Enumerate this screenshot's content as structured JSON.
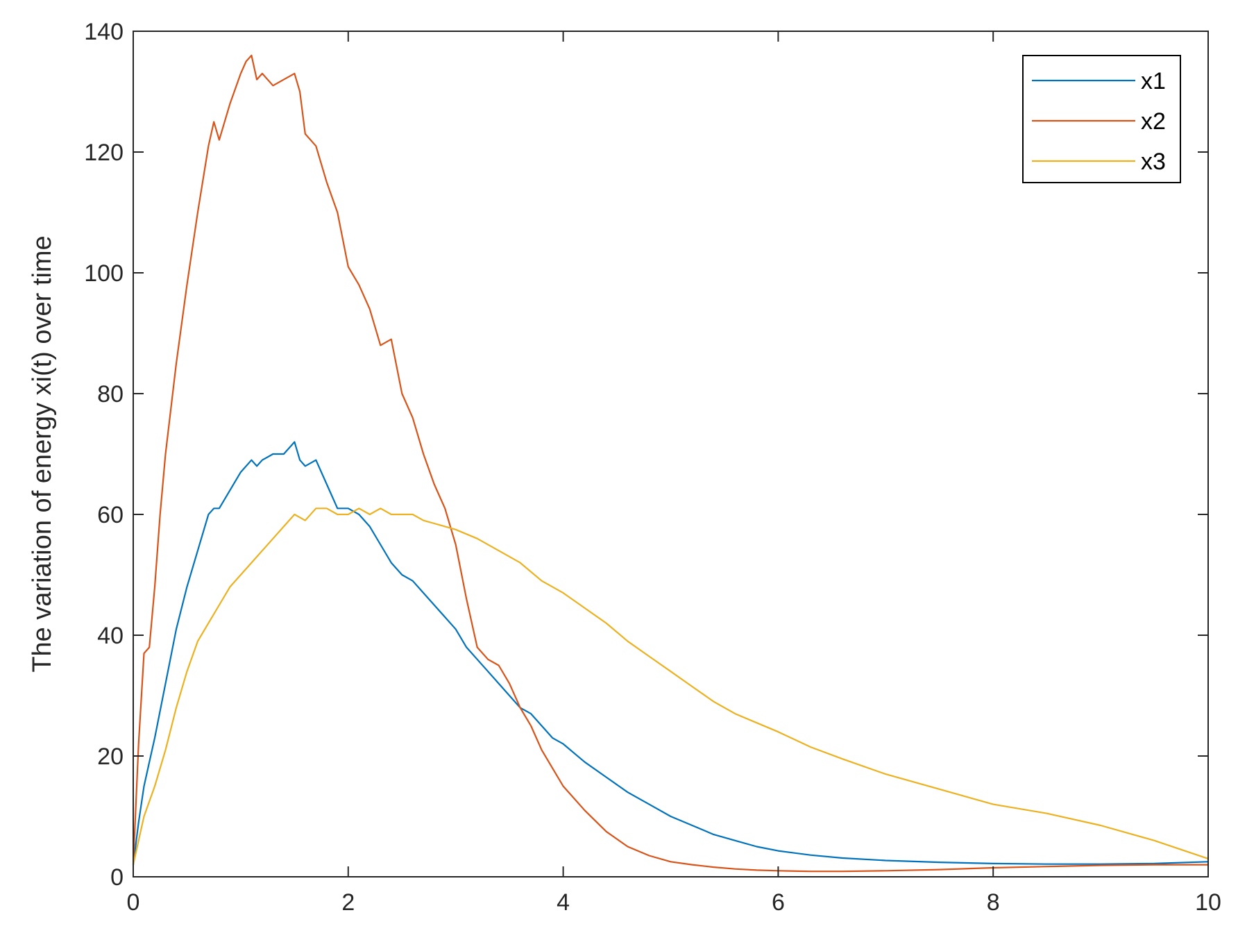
{
  "chart_data": {
    "type": "line",
    "title": "",
    "xlabel": "",
    "ylabel": "The variation of energy xi(t) over time",
    "xlim": [
      0,
      10
    ],
    "ylim": [
      0,
      140
    ],
    "xticks": [
      0,
      2,
      4,
      6,
      8,
      10
    ],
    "yticks": [
      0,
      20,
      40,
      60,
      80,
      100,
      120,
      140
    ],
    "grid": false,
    "box": true,
    "legend_position": "top-right",
    "series": [
      {
        "name": "x1",
        "color": "#0072BD",
        "x": [
          0,
          0.05,
          0.1,
          0.15,
          0.2,
          0.3,
          0.4,
          0.5,
          0.6,
          0.7,
          0.75,
          0.8,
          0.9,
          1.0,
          1.1,
          1.15,
          1.2,
          1.3,
          1.4,
          1.5,
          1.55,
          1.6,
          1.7,
          1.8,
          1.9,
          2.0,
          2.1,
          2.2,
          2.3,
          2.4,
          2.5,
          2.6,
          2.7,
          2.8,
          2.9,
          3.0,
          3.1,
          3.2,
          3.3,
          3.4,
          3.5,
          3.6,
          3.7,
          3.8,
          3.9,
          4.0,
          4.2,
          4.4,
          4.6,
          4.8,
          5.0,
          5.2,
          5.4,
          5.6,
          5.8,
          6.0,
          6.3,
          6.6,
          7.0,
          7.5,
          8.0,
          8.5,
          9.0,
          9.5,
          10.0
        ],
        "y": [
          2,
          9,
          15,
          19,
          23,
          32,
          41,
          48,
          54,
          60,
          61,
          61,
          64,
          67,
          69,
          68,
          69,
          70,
          70,
          72,
          69,
          68,
          69,
          65,
          61,
          61,
          60,
          58,
          55,
          52,
          50,
          49,
          47,
          45,
          43,
          41,
          38,
          36,
          34,
          32,
          30,
          28,
          27,
          25,
          23,
          22,
          19,
          16.5,
          14,
          12,
          10,
          8.5,
          7,
          6,
          5,
          4.3,
          3.6,
          3.1,
          2.7,
          2.4,
          2.2,
          2.1,
          2.1,
          2.2,
          2.5
        ]
      },
      {
        "name": "x2",
        "color": "#D95319",
        "x": [
          0,
          0.05,
          0.1,
          0.15,
          0.2,
          0.25,
          0.3,
          0.4,
          0.5,
          0.6,
          0.7,
          0.75,
          0.8,
          0.9,
          1.0,
          1.05,
          1.1,
          1.15,
          1.2,
          1.3,
          1.4,
          1.5,
          1.55,
          1.6,
          1.7,
          1.8,
          1.9,
          2.0,
          2.1,
          2.2,
          2.3,
          2.4,
          2.5,
          2.6,
          2.7,
          2.8,
          2.9,
          3.0,
          3.1,
          3.2,
          3.3,
          3.4,
          3.5,
          3.6,
          3.7,
          3.8,
          3.9,
          4.0,
          4.2,
          4.4,
          4.6,
          4.8,
          5.0,
          5.2,
          5.4,
          5.6,
          5.8,
          6.0,
          6.3,
          6.6,
          7.0,
          7.5,
          8.0,
          8.5,
          9.0,
          9.5,
          10.0
        ],
        "y": [
          2,
          22,
          37,
          38,
          48,
          60,
          70,
          85,
          98,
          110,
          121,
          125,
          122,
          128,
          133,
          135,
          136,
          132,
          133,
          131,
          132,
          133,
          130,
          123,
          121,
          115,
          110,
          101,
          98,
          94,
          88,
          89,
          80,
          76,
          70,
          65,
          61,
          55,
          46,
          38,
          36,
          35,
          32,
          28,
          25,
          21,
          18,
          15,
          11,
          7.5,
          5,
          3.5,
          2.5,
          2,
          1.6,
          1.3,
          1.1,
          1.0,
          0.9,
          0.9,
          1.0,
          1.2,
          1.5,
          1.7,
          1.9,
          2.0,
          2.0
        ]
      },
      {
        "name": "x3",
        "color": "#EDB120",
        "x": [
          0,
          0.05,
          0.1,
          0.2,
          0.3,
          0.4,
          0.5,
          0.6,
          0.7,
          0.8,
          0.9,
          1.0,
          1.1,
          1.2,
          1.3,
          1.4,
          1.5,
          1.6,
          1.7,
          1.8,
          1.9,
          2.0,
          2.1,
          2.2,
          2.3,
          2.4,
          2.5,
          2.6,
          2.7,
          2.8,
          2.9,
          3.0,
          3.2,
          3.4,
          3.6,
          3.8,
          4.0,
          4.2,
          4.4,
          4.6,
          4.8,
          5.0,
          5.2,
          5.4,
          5.6,
          5.8,
          6.0,
          6.3,
          6.6,
          7.0,
          7.5,
          8.0,
          8.5,
          9.0,
          9.5,
          10.0
        ],
        "y": [
          2,
          6,
          10,
          15,
          21,
          28,
          34,
          39,
          42,
          45,
          48,
          50,
          52,
          54,
          56,
          58,
          60,
          59,
          61,
          61,
          60,
          60,
          61,
          60,
          61,
          60,
          60,
          60,
          59,
          58.5,
          58,
          57.5,
          56,
          54,
          52,
          49,
          47,
          44.5,
          42,
          39,
          36.5,
          34,
          31.5,
          29,
          27,
          25.5,
          24,
          21.5,
          19.5,
          17,
          14.5,
          12,
          10.5,
          8.5,
          6,
          3
        ]
      }
    ]
  }
}
